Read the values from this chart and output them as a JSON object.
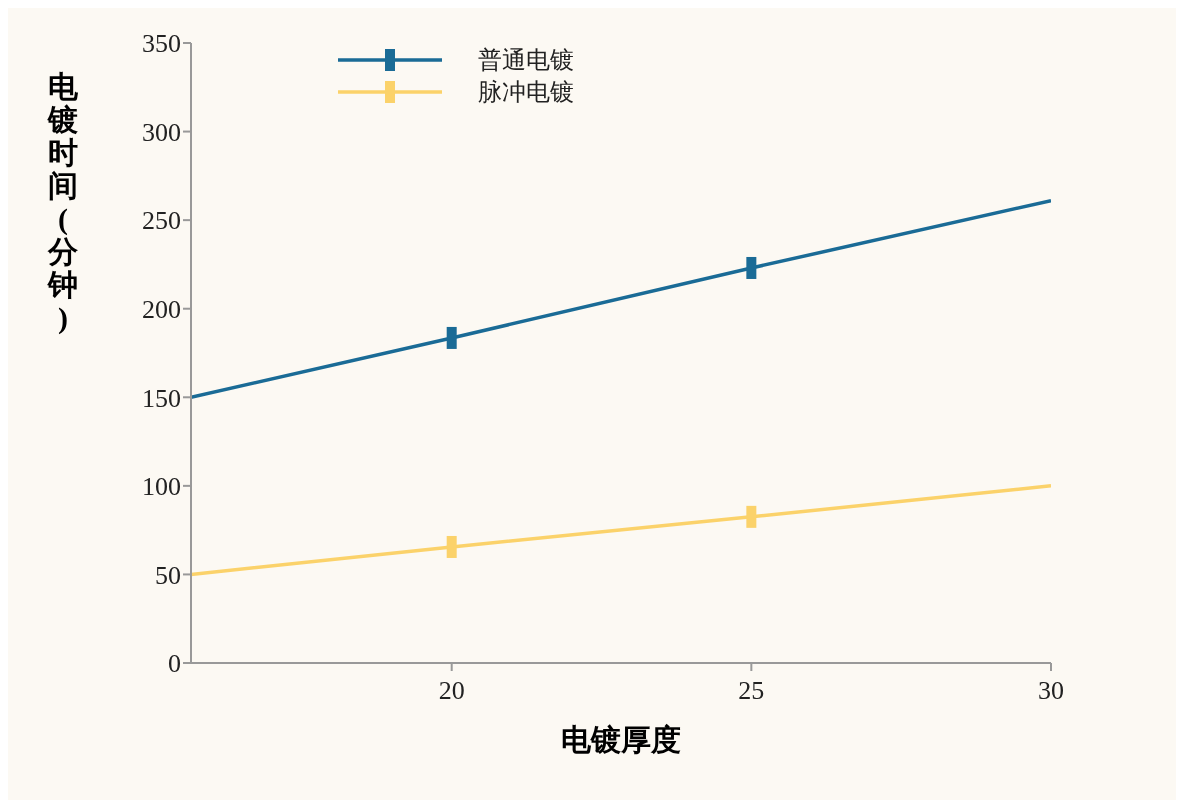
{
  "chart_data": {
    "type": "line",
    "xlabel": "电镀厚度",
    "ylabel": "电镀时间(分钟)",
    "xlim": [
      15.65,
      30
    ],
    "xticks": [
      20,
      25,
      30
    ],
    "ylim": [
      0,
      350
    ],
    "yticks": [
      0,
      50,
      100,
      150,
      200,
      250,
      300,
      350
    ],
    "grid": false,
    "legend": "top left",
    "series": [
      {
        "name": "普通电镀",
        "type": "line",
        "color": "#1a6b96",
        "x": [
          15.65,
          20,
          25,
          30
        ],
        "values": [
          150,
          183.5,
          223,
          261
        ],
        "marker": "none"
      },
      {
        "type": "scatter",
        "color": "#1a6b96",
        "x": [
          20,
          25
        ],
        "values": [
          183.5,
          223
        ],
        "marker": "square"
      },
      {
        "name": "脉冲电镀",
        "type": "line",
        "color": "#fbd26a",
        "x": [
          15.65,
          20,
          25,
          30
        ],
        "values": [
          50,
          65.5,
          82.5,
          100
        ],
        "marker": "none"
      },
      {
        "type": "scatter",
        "color": "#fbd26a",
        "x": [
          20,
          25
        ],
        "values": [
          65.5,
          82.5
        ],
        "marker": "square"
      }
    ]
  }
}
